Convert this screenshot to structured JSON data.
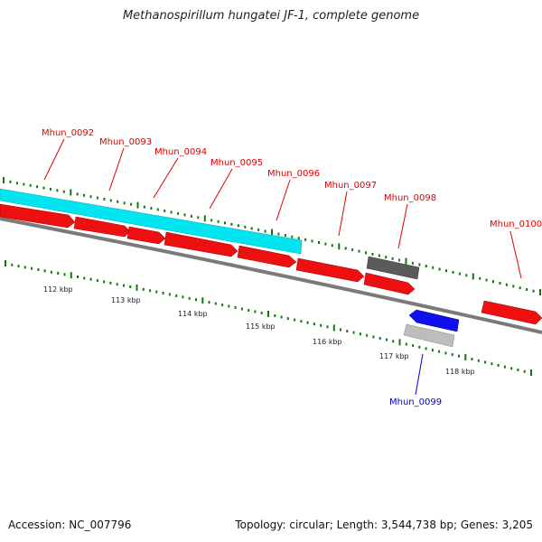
{
  "title": "Methanospirillum hungatei JF-1, complete genome",
  "footer": {
    "accession": "Accession: NC_007796",
    "stats": "Topology: circular; Length: 3,544,738 bp; Genes: 3,205"
  },
  "colors": {
    "forward_gene": "#ee0000",
    "reverse_gene": "#0000ee",
    "highlight_region": "#00e5f0",
    "dark_feature": "#555555",
    "light_feature": "#b8b8b8",
    "backbone": "#777777",
    "ticks": "#117711",
    "label_red": "#e00000",
    "label_blue": "#0000cc"
  },
  "genes": [
    {
      "name": "Mhun_0092",
      "strand": "+"
    },
    {
      "name": "Mhun_0093",
      "strand": "+"
    },
    {
      "name": "Mhun_0094",
      "strand": "+"
    },
    {
      "name": "Mhun_0095",
      "strand": "+"
    },
    {
      "name": "Mhun_0096",
      "strand": "+"
    },
    {
      "name": "Mhun_0097",
      "strand": "+"
    },
    {
      "name": "Mhun_0098",
      "strand": "+"
    },
    {
      "name": "Mhun_0099",
      "strand": "-"
    },
    {
      "name": "Mhun_0100",
      "strand": "+"
    }
  ],
  "scale_labels": [
    "112 kbp",
    "113 kbp",
    "114 kbp",
    "115 kbp",
    "116 kbp",
    "117 kbp",
    "118 kbp"
  ]
}
